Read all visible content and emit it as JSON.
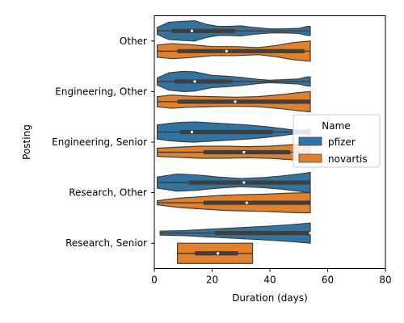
{
  "chart_data": {
    "type": "violin",
    "orientation": "horizontal",
    "xlabel": "Duration (days)",
    "ylabel": "Posting",
    "xlim": [
      0,
      80
    ],
    "xticks": [
      0,
      20,
      40,
      60,
      80
    ],
    "categories": [
      "Other",
      "Engineering, Other",
      "Engineering, Senior",
      "Research, Other",
      "Research, Senior"
    ],
    "legend": {
      "title": "Name",
      "placement": "center-right"
    },
    "series": [
      {
        "name": "pfizer",
        "color": "#3274a1",
        "groups": [
          {
            "category": "Other",
            "min": 1,
            "max": 54,
            "q1": 6,
            "median": 13,
            "q3": 28,
            "density": [
              [
                1,
                0.35
              ],
              [
                5,
                0.85
              ],
              [
                10,
                0.95
              ],
              [
                14,
                1.0
              ],
              [
                18,
                0.65
              ],
              [
                22,
                0.45
              ],
              [
                26,
                0.45
              ],
              [
                30,
                0.5
              ],
              [
                34,
                0.35
              ],
              [
                40,
                0.2
              ],
              [
                45,
                0.2
              ],
              [
                50,
                0.25
              ],
              [
                53,
                0.45
              ],
              [
                54,
                0.45
              ]
            ]
          },
          {
            "category": "Engineering, Other",
            "min": 1,
            "max": 54,
            "q1": 7,
            "median": 14,
            "q3": 27,
            "density": [
              [
                1,
                0.35
              ],
              [
                5,
                0.85
              ],
              [
                10,
                1.0
              ],
              [
                14,
                0.95
              ],
              [
                20,
                0.6
              ],
              [
                26,
                0.5
              ],
              [
                30,
                0.4
              ],
              [
                36,
                0.2
              ],
              [
                40,
                0.12
              ],
              [
                45,
                0.18
              ],
              [
                50,
                0.25
              ],
              [
                53,
                0.45
              ],
              [
                54,
                0.45
              ]
            ]
          },
          {
            "category": "Engineering, Senior",
            "min": 1,
            "max": 54,
            "q1": 9,
            "median": 13,
            "q3": 41,
            "density": [
              [
                1,
                0.7
              ],
              [
                5,
                0.85
              ],
              [
                9,
                0.95
              ],
              [
                14,
                1.0
              ],
              [
                20,
                0.9
              ],
              [
                26,
                0.8
              ],
              [
                32,
                0.7
              ],
              [
                38,
                0.55
              ],
              [
                44,
                0.35
              ],
              [
                48,
                0.2
              ],
              [
                52,
                0.2
              ],
              [
                54,
                0.3
              ]
            ]
          },
          {
            "category": "Research, Other",
            "min": 1,
            "max": 54,
            "q1": 12,
            "median": 31,
            "q3": 54,
            "density": [
              [
                1,
                0.55
              ],
              [
                8,
                0.85
              ],
              [
                15,
                0.75
              ],
              [
                22,
                0.55
              ],
              [
                30,
                0.4
              ],
              [
                38,
                0.5
              ],
              [
                44,
                0.65
              ],
              [
                50,
                0.85
              ],
              [
                54,
                1.0
              ]
            ]
          },
          {
            "category": "Research, Senior",
            "min": 2,
            "max": 54,
            "q1": 21,
            "median": 54,
            "q3": 54,
            "density": [
              [
                2,
                0.2
              ],
              [
                10,
                0.25
              ],
              [
                20,
                0.4
              ],
              [
                30,
                0.55
              ],
              [
                40,
                0.7
              ],
              [
                48,
                0.85
              ],
              [
                54,
                1.0
              ]
            ]
          }
        ]
      },
      {
        "name": "novartis",
        "color": "#e1812c",
        "groups": [
          {
            "category": "Other",
            "min": 1,
            "max": 54,
            "q1": 8,
            "median": 25,
            "q3": 52,
            "density": [
              [
                1,
                0.6
              ],
              [
                6,
                0.75
              ],
              [
                12,
                0.65
              ],
              [
                20,
                0.45
              ],
              [
                28,
                0.45
              ],
              [
                36,
                0.35
              ],
              [
                42,
                0.55
              ],
              [
                48,
                0.85
              ],
              [
                54,
                1.0
              ]
            ]
          },
          {
            "category": "Engineering, Other",
            "min": 1,
            "max": 54,
            "q1": 8,
            "median": 28,
            "q3": 54,
            "density": [
              [
                1,
                0.5
              ],
              [
                6,
                0.65
              ],
              [
                12,
                0.55
              ],
              [
                20,
                0.5
              ],
              [
                28,
                0.45
              ],
              [
                36,
                0.5
              ],
              [
                44,
                0.7
              ],
              [
                50,
                0.9
              ],
              [
                54,
                1.0
              ]
            ]
          },
          {
            "category": "Engineering, Senior",
            "min": 1,
            "max": 54,
            "q1": 17,
            "median": 31,
            "q3": 47,
            "density": [
              [
                1,
                0.4
              ],
              [
                8,
                0.5
              ],
              [
                16,
                0.6
              ],
              [
                24,
                0.6
              ],
              [
                32,
                0.55
              ],
              [
                40,
                0.6
              ],
              [
                48,
                0.75
              ],
              [
                54,
                0.85
              ]
            ]
          },
          {
            "category": "Research, Other",
            "min": 1,
            "max": 54,
            "q1": 17,
            "median": 32,
            "q3": 54,
            "density": [
              [
                1,
                0.2
              ],
              [
                8,
                0.45
              ],
              [
                16,
                0.6
              ],
              [
                24,
                0.75
              ],
              [
                30,
                0.8
              ],
              [
                38,
                0.85
              ],
              [
                46,
                0.95
              ],
              [
                54,
                1.0
              ]
            ]
          },
          {
            "category": "Research, Senior",
            "min": 8,
            "max": 34,
            "q1": 14,
            "median": 22,
            "q3": 29,
            "density": [
              [
                8,
                1.0
              ],
              [
                34,
                1.0
              ]
            ]
          }
        ]
      }
    ]
  }
}
